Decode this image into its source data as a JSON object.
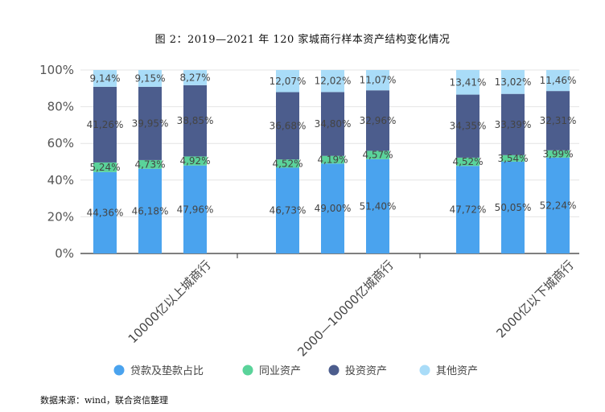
{
  "title": "图 2：2019—2021 年 120 家城商行样本资产结构变化情况",
  "source": "数据来源：wind，联合资信整理",
  "chart_data": {
    "type": "bar",
    "stacked": true,
    "title": "",
    "xlabel": "",
    "ylabel": "",
    "ylim": [
      0,
      100
    ],
    "yticks": [
      "0%",
      "20%",
      "40%",
      "60%",
      "80%",
      "100%"
    ],
    "categories": [
      "10000亿以上城商行",
      "2000—10000亿城商行",
      "2000亿以下城商行"
    ],
    "bars_per_group": 3,
    "legend_position": "bottom",
    "series": [
      {
        "name": "贷款及垫款占比",
        "color": "#4aa3ee",
        "values": [
          [
            44.36,
            46.18,
            47.96
          ],
          [
            46.73,
            49.0,
            51.4
          ],
          [
            47.72,
            50.05,
            52.24
          ]
        ],
        "labels": [
          [
            "44,36%",
            "46,18%",
            "47,96%"
          ],
          [
            "46,73%",
            "49,00%",
            "51,40%"
          ],
          [
            "47,72%",
            "50,05%",
            "52,24%"
          ]
        ]
      },
      {
        "name": "同业资产",
        "color": "#5ad39a",
        "values": [
          [
            5.24,
            4.73,
            4.92
          ],
          [
            4.52,
            4.19,
            4.57
          ],
          [
            4.52,
            3.54,
            3.99
          ]
        ],
        "labels": [
          [
            "5,24%",
            "4,73%",
            "4,92%"
          ],
          [
            "4,52%",
            "4,19%",
            "4,57%"
          ],
          [
            "4,52%",
            "3,54%",
            "3,99%"
          ]
        ]
      },
      {
        "name": "投资资产",
        "color": "#4c5d8d",
        "values": [
          [
            41.26,
            39.95,
            38.85
          ],
          [
            36.68,
            34.8,
            32.96
          ],
          [
            34.35,
            33.39,
            32.31
          ]
        ],
        "labels": [
          [
            "41,26%",
            "39,95%",
            "38,85%"
          ],
          [
            "36,68%",
            "34,80%",
            "32,96%"
          ],
          [
            "34,35%",
            "33,39%",
            "32,31%"
          ]
        ]
      },
      {
        "name": "其他资产",
        "color": "#a9dcf8",
        "values": [
          [
            9.14,
            9.15,
            8.27
          ],
          [
            12.07,
            12.02,
            11.07
          ],
          [
            13.41,
            13.02,
            11.46
          ]
        ],
        "labels": [
          [
            "9,14%",
            "9,15%",
            "8,27%"
          ],
          [
            "12,07%",
            "12,02%",
            "11,07%"
          ],
          [
            "13,41%",
            "13,02%",
            "11,46%"
          ]
        ]
      }
    ]
  }
}
